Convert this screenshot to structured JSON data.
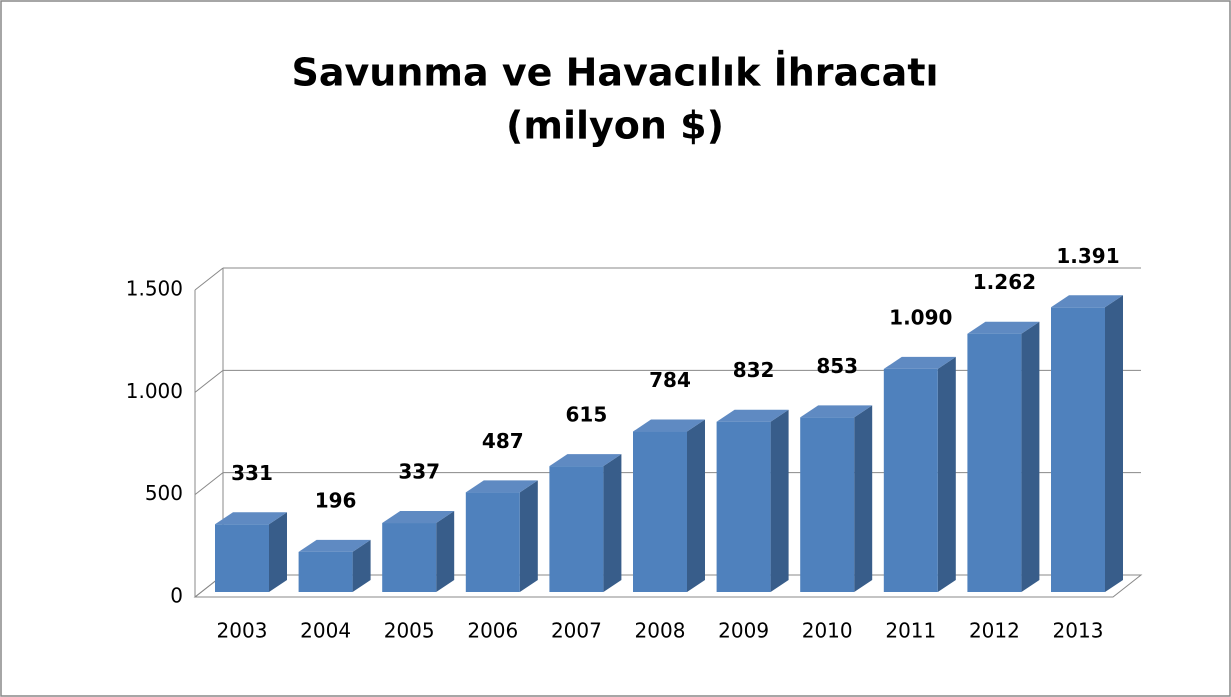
{
  "chart_data": {
    "type": "bar3d",
    "title": "Savunma ve Havacılık İhracatı",
    "subtitle": "(milyon $)",
    "categories": [
      "2003",
      "2004",
      "2005",
      "2006",
      "2007",
      "2008",
      "2009",
      "2010",
      "2011",
      "2012",
      "2013"
    ],
    "values": [
      331,
      196,
      337,
      487,
      615,
      784,
      832,
      853,
      1090,
      1262,
      1391
    ],
    "value_labels": [
      "331",
      "196",
      "337",
      "487",
      "615",
      "784",
      "832",
      "853",
      "1.090",
      "1.262",
      "1.391"
    ],
    "color": "#4f81bd",
    "ylim": [
      0,
      1500
    ],
    "yticks": [
      0,
      500,
      {
        "value": 1000,
        "label": "1.000"
      },
      {
        "value": 1500,
        "label": "1.500"
      }
    ],
    "grid": true
  }
}
